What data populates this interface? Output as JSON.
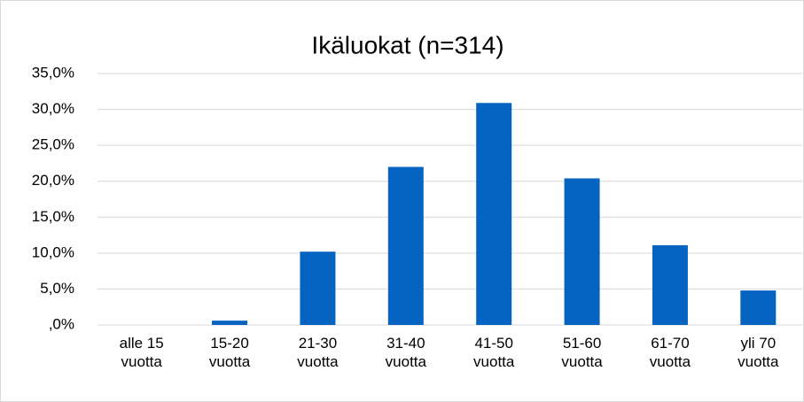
{
  "chart_data": {
    "type": "bar",
    "title": "Ikäluokat (n=314)",
    "categories": [
      "alle 15 vuotta",
      "15-20 vuotta",
      "21-30 vuotta",
      "31-40 vuotta",
      "41-50 vuotta",
      "51-60 vuotta",
      "61-70 vuotta",
      "yli 70 vuotta"
    ],
    "values": [
      0,
      0.6,
      10.2,
      22.0,
      30.9,
      20.4,
      11.1,
      4.8
    ],
    "color": "#0563c1",
    "ylim": [
      0,
      35
    ],
    "yticks": [
      {
        "value": 0,
        "label": ",0%"
      },
      {
        "value": 5,
        "label": "5,0%"
      },
      {
        "value": 10,
        "label": "10,0%"
      },
      {
        "value": 15,
        "label": "15,0%"
      },
      {
        "value": 20,
        "label": "20,0%"
      },
      {
        "value": 25,
        "label": "25,0%"
      },
      {
        "value": 30,
        "label": "30,0%"
      },
      {
        "value": 35,
        "label": "35,0%"
      }
    ],
    "grid": true
  }
}
